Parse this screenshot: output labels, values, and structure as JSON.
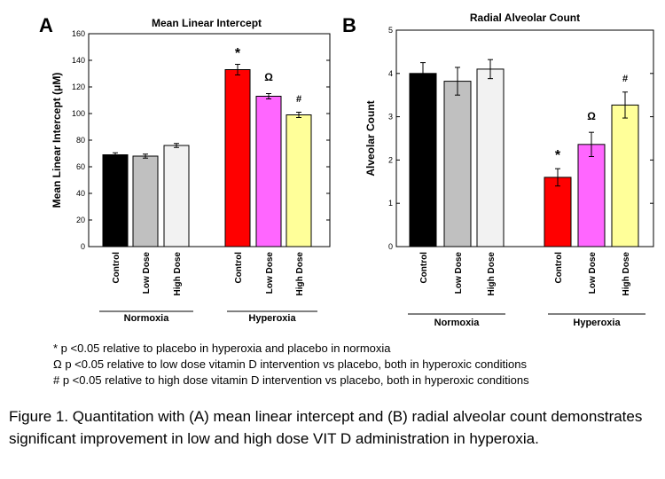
{
  "panels": [
    {
      "letter": "A",
      "chart_data": {
        "type": "bar",
        "title": "Mean Linear Intercept",
        "ylabel": "Mean Linear Intercept (μM)",
        "ylim": [
          0,
          160
        ],
        "yticks": [
          0,
          20,
          40,
          60,
          80,
          100,
          120,
          140,
          160
        ],
        "grid": false,
        "groups": [
          {
            "label": "Normoxia",
            "bars": [
              {
                "category": "Control",
                "value": 69,
                "error": 1.5,
                "color": "#000000"
              },
              {
                "category": "Low Dose",
                "value": 68,
                "error": 1.5,
                "color": "#c0c0c0"
              },
              {
                "category": "High Dose",
                "value": 76,
                "error": 1.5,
                "color": "#f2f2f2"
              }
            ]
          },
          {
            "label": "Hyperoxia",
            "bars": [
              {
                "category": "Control",
                "value": 133,
                "error": 4,
                "color": "#ff0000",
                "annotation": "*"
              },
              {
                "category": "Low Dose",
                "value": 113,
                "error": 2,
                "color": "#ff66ff",
                "annotation": "Ω"
              },
              {
                "category": "High Dose",
                "value": 99,
                "error": 2,
                "color": "#ffff99",
                "annotation": "#"
              }
            ]
          }
        ]
      }
    },
    {
      "letter": "B",
      "chart_data": {
        "type": "bar",
        "title": "Radial Alveolar Count",
        "ylabel": "Alveolar Count",
        "ylim": [
          0,
          5
        ],
        "yticks": [
          0,
          1,
          2,
          3,
          4,
          5
        ],
        "grid": false,
        "groups": [
          {
            "label": "Normoxia",
            "bars": [
              {
                "category": "Control",
                "value": 4.0,
                "error": 0.25,
                "color": "#000000"
              },
              {
                "category": "Low Dose",
                "value": 3.82,
                "error": 0.32,
                "color": "#c0c0c0"
              },
              {
                "category": "High Dose",
                "value": 4.1,
                "error": 0.22,
                "color": "#f2f2f2"
              }
            ]
          },
          {
            "label": "Hyperoxia",
            "bars": [
              {
                "category": "Control",
                "value": 1.6,
                "error": 0.2,
                "color": "#ff0000",
                "annotation": "*"
              },
              {
                "category": "Low Dose",
                "value": 2.36,
                "error": 0.28,
                "color": "#ff66ff",
                "annotation": "Ω"
              },
              {
                "category": "High Dose",
                "value": 3.27,
                "error": 0.3,
                "color": "#ffff99",
                "annotation": "#"
              }
            ]
          }
        ]
      }
    }
  ],
  "notes": [
    "* p <0.05 relative to placebo in hyperoxia and placebo in normoxia",
    "Ω p <0.05 relative to low dose vitamin D intervention vs placebo, both in hyperoxic conditions",
    "# p <0.05 relative to high dose vitamin D intervention vs placebo, both in hyperoxic conditions"
  ],
  "caption": "Figure 1. Quantitation with (A) mean linear intercept and (B) radial alveolar count demonstrates significant improvement in low and high dose VIT D administration in hyperoxia."
}
